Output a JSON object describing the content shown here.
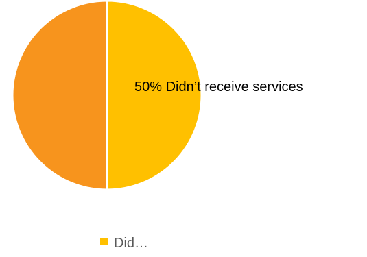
{
  "chart_data": {
    "type": "pie",
    "slices": [
      {
        "label": "Didn’t receive services",
        "value": 50,
        "color": "#FFC000"
      },
      {
        "label": "",
        "value": 50,
        "color": "#F7941D"
      }
    ],
    "data_labels": [
      "50% Didn’t receive services"
    ],
    "legend": {
      "placement": "bottom",
      "entries": [
        {
          "label": "Did…",
          "color": "#FFC000"
        }
      ]
    }
  }
}
